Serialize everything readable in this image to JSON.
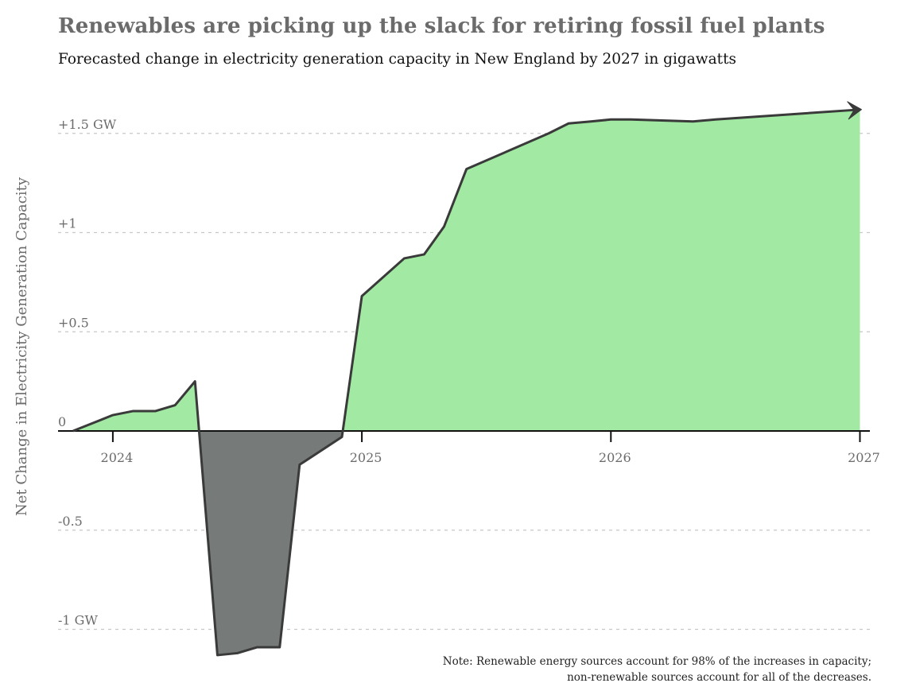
{
  "title": "Renewables are picking up the slack for retiring fossil fuel plants",
  "subtitle": "Forecasted change in electricity generation capacity in New England by 2027 in gigawatts",
  "note": "Note: Renewable energy sources account for 98% of the increases in capacity; non-renewable sources account for all of the decreases.",
  "colors": {
    "positive_fill": "#a2eaa3",
    "negative_fill": "#767a79",
    "line": "#3a3a3a",
    "text": "#6b6b6b",
    "grid": "#c8c8c8"
  },
  "chart_data": {
    "type": "area",
    "title": "Renewables are picking up the slack for retiring fossil fuel plants",
    "subtitle": "Forecasted change in electricity generation capacity in New England by 2027 in gigawatts",
    "xlabel": "",
    "ylabel": "Net Change in Electricity Generation Capacity",
    "xlim": [
      2023.78,
      2027.04
    ],
    "ylim": [
      -1.13,
      1.65
    ],
    "x_ticks": [
      {
        "value": 2024,
        "label": "2024"
      },
      {
        "value": 2025,
        "label": "2025"
      },
      {
        "value": 2026,
        "label": "2026"
      },
      {
        "value": 2027,
        "label": "2027"
      }
    ],
    "y_ticks": [
      {
        "value": 1.5,
        "label": "+1.5 GW"
      },
      {
        "value": 1,
        "label": "+1"
      },
      {
        "value": 0.5,
        "label": "+0.5"
      },
      {
        "value": 0,
        "label": "0"
      },
      {
        "value": -0.5,
        "label": "-0.5"
      },
      {
        "value": -1,
        "label": "-1 GW"
      }
    ],
    "grid": true,
    "series": [
      {
        "x": [
          2023.84,
          2024.0,
          2024.08,
          2024.17,
          2024.25,
          2024.33,
          2024.42,
          2024.5,
          2024.58,
          2024.67,
          2024.75,
          2024.92,
          2025.0,
          2025.17,
          2025.25,
          2025.33,
          2025.42,
          2025.75,
          2025.83,
          2025.92,
          2026.0,
          2026.08,
          2026.33,
          2026.42,
          2027.0
        ],
        "y": [
          0.0,
          0.08,
          0.1,
          0.1,
          0.13,
          0.25,
          -1.13,
          -1.12,
          -1.09,
          -1.09,
          -0.17,
          -0.03,
          0.68,
          0.87,
          0.89,
          1.03,
          1.32,
          1.5,
          1.55,
          1.56,
          1.57,
          1.57,
          1.56,
          1.57,
          1.62
        ]
      }
    ]
  }
}
